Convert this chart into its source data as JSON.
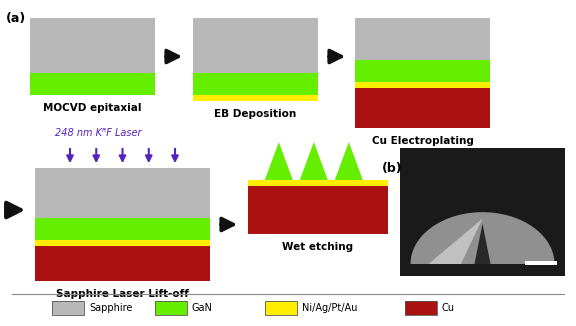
{
  "background": "#ffffff",
  "colors": {
    "sapphire": "#b8b8b8",
    "GaN": "#66ee00",
    "NiAgPtAu": "#ffee00",
    "Cu": "#aa1111",
    "arrow": "#111111",
    "laser_arrow": "#5522bb",
    "text": "#000000",
    "sem_bg": "#1a1a1a"
  },
  "step_labels": [
    "MOCVD epitaxial",
    "EB Deposition",
    "Cu Electroplating",
    "Sapphire Laser Lift-off",
    "Wet etching"
  ],
  "laser_label": "248 nm KᴿF Laser",
  "legend_items": [
    {
      "label": "Sapphire",
      "color": "#b8b8b8"
    },
    {
      "label": "GaN",
      "color": "#66ee00"
    },
    {
      "label": "Ni/Ag/Pt/Au",
      "color": "#ffee00"
    },
    {
      "label": "Cu",
      "color": "#aa1111"
    }
  ],
  "label_a": "(a)",
  "label_b": "(b)"
}
